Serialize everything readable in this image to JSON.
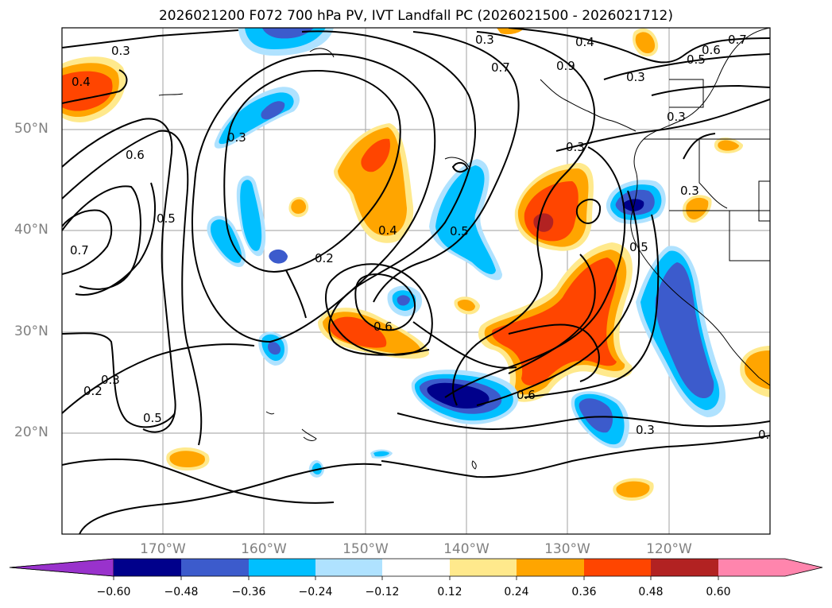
{
  "title": "2026021200 F072 700 hPa PV, IVT Landfall PC (2026021500 - 2026021712)",
  "map": {
    "lon_range": [
      -180,
      -110
    ],
    "lat_range": [
      10,
      60
    ],
    "lat_ticks": [
      "50°N",
      "40°N",
      "30°N",
      "20°N"
    ],
    "lon_ticks": [
      "170°W",
      "160°W",
      "150°W",
      "140°W",
      "130°W",
      "120°W"
    ],
    "gridlines": true
  },
  "contour_labels": [
    "0.3",
    "0.4",
    "0.6",
    "0.5",
    "0.7",
    "0.3",
    "0.2",
    "0.4",
    "0.5",
    "0.6",
    "0.2",
    "0.3",
    "0.5",
    "0.6",
    "0.3",
    "0.7",
    "0.4",
    "0.5",
    "0.6",
    "0.7",
    "0.3",
    "0.3",
    "0.3",
    "0.5",
    "0.3",
    "0.3",
    "0.9",
    "0."
  ],
  "colorbar": {
    "ticks": [
      "−0.60",
      "−0.48",
      "−0.36",
      "−0.24",
      "−0.12",
      "0.12",
      "0.24",
      "0.36",
      "0.48",
      "0.60"
    ],
    "colors": [
      "#9932cc",
      "#00008b",
      "#3c5bcc",
      "#00bfff",
      "#afe2ff",
      "#ffffff",
      "#ffe98c",
      "#ffa500",
      "#ff4500",
      "#b22222",
      "#ff85ad"
    ]
  }
}
